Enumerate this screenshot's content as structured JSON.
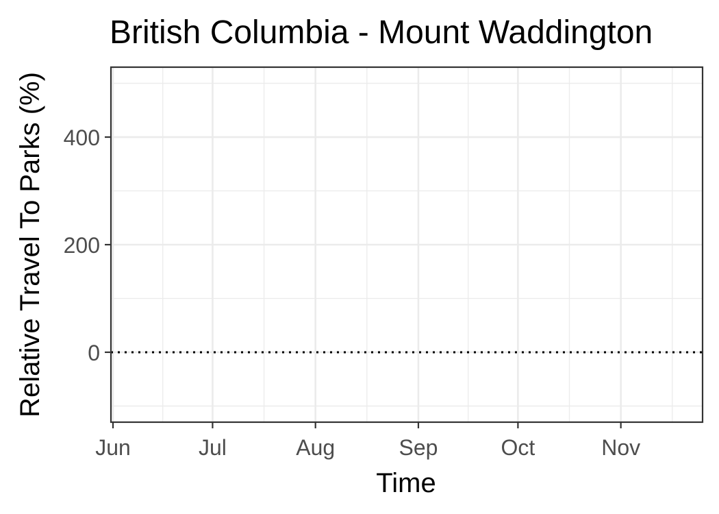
{
  "chart_data": {
    "type": "line",
    "title": "British Columbia - Mount Waddington",
    "xlabel": "Time",
    "ylabel": "Relative Travel To Parks (%)",
    "x_ticks": [
      {
        "label": "Jun",
        "date": "2020-06-01"
      },
      {
        "label": "Jul",
        "date": "2020-07-01"
      },
      {
        "label": "Aug",
        "date": "2020-08-01"
      },
      {
        "label": "Sep",
        "date": "2020-09-01"
      },
      {
        "label": "Oct",
        "date": "2020-10-01"
      },
      {
        "label": "Nov",
        "date": "2020-11-01"
      }
    ],
    "xlim": [
      "2020-06-01",
      "2020-11-25"
    ],
    "y_ticks": [
      0,
      200,
      400
    ],
    "ylim": [
      -130,
      530
    ],
    "reference_line": {
      "y": 0,
      "style": "dotted",
      "color": "#000000"
    },
    "series": [],
    "grid": true
  }
}
